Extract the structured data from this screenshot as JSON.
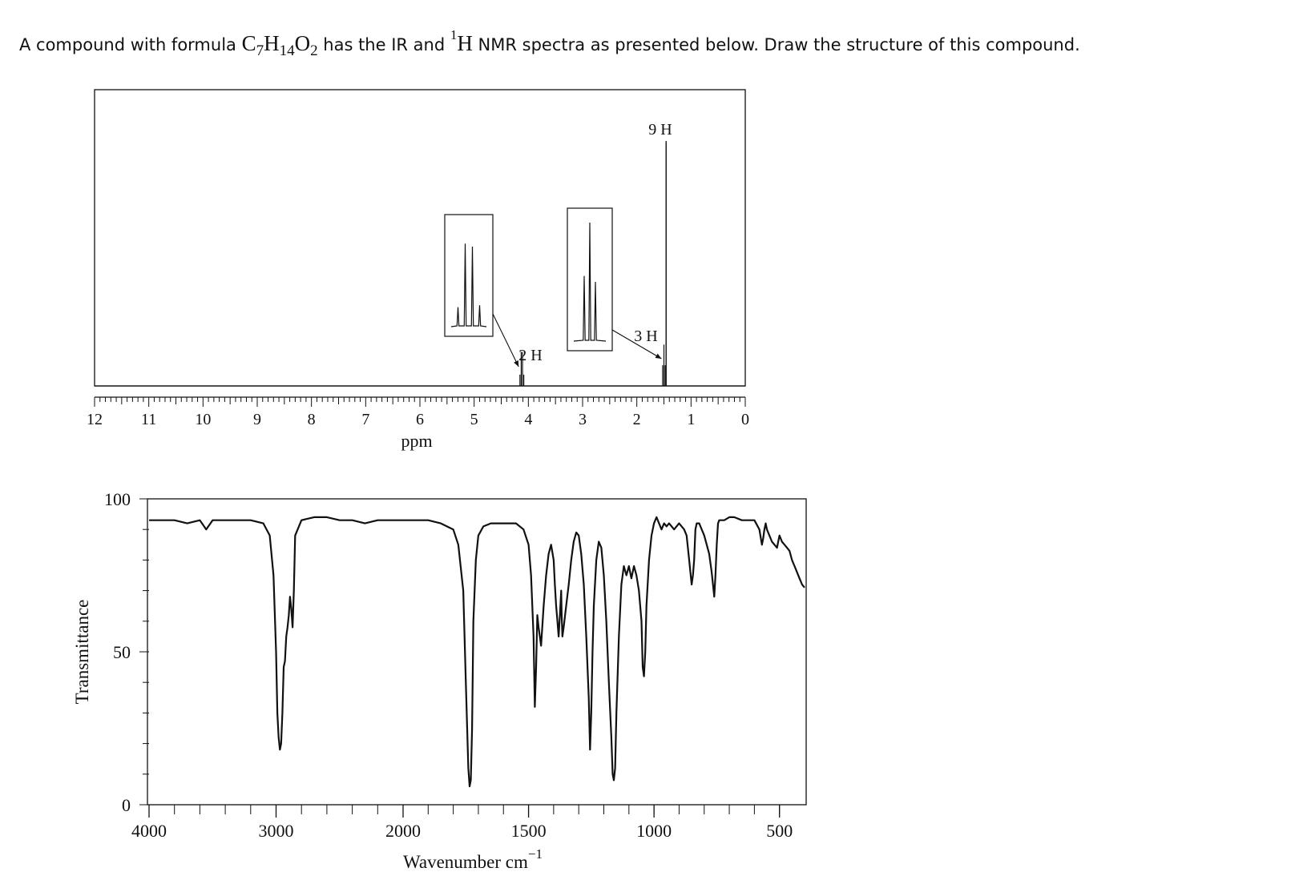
{
  "question": {
    "prefix": "A compound with formula ",
    "formula_parts": [
      "C",
      "7",
      "H",
      "14",
      "O",
      "2"
    ],
    "middle": " has the IR and ",
    "nucleus_mass": "1",
    "nucleus_symbol": "H",
    "suffix": " NMR spectra as presented below. Draw the structure of this compound."
  },
  "chart_data": [
    {
      "type": "line",
      "name": "1H NMR",
      "xlabel": "ppm",
      "ylabel": "",
      "xlim": [
        12,
        0
      ],
      "x_reversed": true,
      "x_ticks": [
        12,
        11,
        10,
        9,
        8,
        7,
        6,
        5,
        4,
        3,
        2,
        1,
        0
      ],
      "grid": false,
      "peaks": [
        {
          "shift": 4.12,
          "multiplicity": "quartet",
          "integration": "2 H",
          "intensity": 0.14,
          "expanded_inset": true
        },
        {
          "shift": 1.5,
          "multiplicity": "triplet",
          "integration": "3 H",
          "intensity": 0.17,
          "expanded_inset": true
        },
        {
          "shift": 1.46,
          "multiplicity": "singlet",
          "integration": "9 H",
          "intensity": 1.0,
          "expanded_inset": false
        }
      ],
      "annotations": [
        "9 H",
        "3 H",
        "2 H"
      ]
    },
    {
      "type": "line",
      "name": "IR",
      "xlabel": "Wavenumber cm",
      "xlabel_superscript": "−1",
      "ylabel": "Transmittance",
      "xlim": [
        4000,
        400
      ],
      "ylim": [
        0,
        100
      ],
      "x_reversed": true,
      "x_ticks": [
        4000,
        3000,
        2000,
        1500,
        1000,
        500
      ],
      "y_ticks": [
        0,
        50,
        100
      ],
      "grid": false,
      "x": [
        4000,
        3900,
        3800,
        3700,
        3600,
        3550,
        3500,
        3400,
        3300,
        3200,
        3100,
        3050,
        3020,
        3000,
        2990,
        2980,
        2970,
        2960,
        2950,
        2940,
        2930,
        2920,
        2910,
        2900,
        2890,
        2880,
        2870,
        2860,
        2850,
        2800,
        2700,
        2600,
        2500,
        2400,
        2300,
        2200,
        2100,
        2000,
        1900,
        1850,
        1800,
        1780,
        1760,
        1750,
        1740,
        1735,
        1730,
        1725,
        1720,
        1710,
        1700,
        1680,
        1650,
        1600,
        1550,
        1520,
        1500,
        1490,
        1480,
        1475,
        1470,
        1465,
        1460,
        1450,
        1440,
        1430,
        1420,
        1410,
        1400,
        1395,
        1390,
        1385,
        1380,
        1375,
        1370,
        1368,
        1365,
        1360,
        1350,
        1340,
        1330,
        1320,
        1310,
        1300,
        1290,
        1280,
        1270,
        1260,
        1255,
        1250,
        1245,
        1240,
        1230,
        1220,
        1210,
        1200,
        1190,
        1180,
        1170,
        1165,
        1160,
        1155,
        1150,
        1140,
        1130,
        1120,
        1110,
        1100,
        1090,
        1080,
        1070,
        1060,
        1050,
        1045,
        1040,
        1035,
        1030,
        1020,
        1010,
        1000,
        990,
        980,
        970,
        960,
        950,
        940,
        920,
        900,
        880,
        870,
        860,
        850,
        845,
        840,
        835,
        830,
        820,
        800,
        780,
        770,
        760,
        755,
        750,
        745,
        740,
        720,
        700,
        680,
        650,
        600,
        580,
        570,
        565,
        560,
        555,
        550,
        530,
        510,
        505,
        500,
        490,
        480,
        470,
        460,
        450,
        440,
        430,
        420,
        410,
        400
      ],
      "y": [
        93,
        93,
        93,
        92,
        93,
        90,
        93,
        93,
        93,
        93,
        92,
        88,
        75,
        50,
        30,
        22,
        18,
        20,
        30,
        45,
        47,
        55,
        58,
        62,
        68,
        64,
        58,
        70,
        88,
        93,
        94,
        94,
        93,
        93,
        92,
        93,
        93,
        93,
        93,
        92,
        90,
        85,
        70,
        40,
        12,
        6,
        8,
        25,
        60,
        80,
        88,
        91,
        92,
        92,
        92,
        90,
        85,
        75,
        55,
        32,
        45,
        62,
        58,
        52,
        65,
        75,
        82,
        85,
        80,
        72,
        65,
        60,
        55,
        62,
        70,
        62,
        55,
        58,
        65,
        72,
        80,
        86,
        89,
        88,
        82,
        72,
        55,
        35,
        18,
        30,
        50,
        65,
        80,
        86,
        84,
        75,
        60,
        40,
        22,
        10,
        8,
        12,
        30,
        55,
        72,
        78,
        75,
        78,
        74,
        78,
        75,
        70,
        60,
        45,
        42,
        50,
        65,
        80,
        88,
        92,
        94,
        92,
        90,
        92,
        91,
        92,
        90,
        92,
        90,
        88,
        80,
        72,
        75,
        80,
        90,
        92,
        92,
        88,
        82,
        76,
        68,
        75,
        85,
        92,
        93,
        93,
        94,
        94,
        93,
        93,
        90,
        85,
        87,
        90,
        92,
        90,
        86,
        84,
        86,
        88,
        86,
        85,
        84,
        83,
        80,
        78,
        76,
        74,
        72,
        71
      ]
    }
  ]
}
